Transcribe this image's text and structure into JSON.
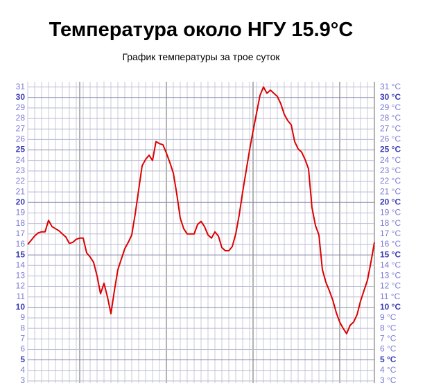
{
  "chart_data": {
    "type": "line",
    "title": "Температура около НГУ 15.9°C",
    "subtitle": "График температуры за трое суток",
    "color": "#dd0000",
    "grid": true,
    "ylim": [
      2.8,
      31.5
    ],
    "yticks": [
      3,
      4,
      5,
      6,
      7,
      8,
      9,
      10,
      11,
      12,
      13,
      14,
      15,
      16,
      17,
      18,
      19,
      20,
      21,
      22,
      23,
      24,
      25,
      26,
      27,
      28,
      29,
      30,
      31
    ],
    "y2lim": [
      2.8,
      31.5
    ],
    "y2ticks": [
      {
        "value": 3,
        "label": "3 °C"
      },
      {
        "value": 4,
        "label": "4 °C"
      },
      {
        "value": 5,
        "label": "5 °C"
      },
      {
        "value": 6,
        "label": "6 °C"
      },
      {
        "value": 7,
        "label": "7 °C"
      },
      {
        "value": 8,
        "label": "8 °C"
      },
      {
        "value": 9,
        "label": "9 °C"
      },
      {
        "value": 10,
        "label": "10 °C"
      },
      {
        "value": 11,
        "label": "11 °C"
      },
      {
        "value": 12,
        "label": "12 °C"
      },
      {
        "value": 13,
        "label": "13 °C"
      },
      {
        "value": 14,
        "label": "14 °C"
      },
      {
        "value": 15,
        "label": "15 °C"
      },
      {
        "value": 16,
        "label": "16 °C"
      },
      {
        "value": 17,
        "label": "17 °C"
      },
      {
        "value": 18,
        "label": "18 °C"
      },
      {
        "value": 19,
        "label": "19 °C"
      },
      {
        "value": 20,
        "label": "20 °C"
      },
      {
        "value": 21,
        "label": "21 °C"
      },
      {
        "value": 22,
        "label": "22 °C"
      },
      {
        "value": 23,
        "label": "23 °C"
      },
      {
        "value": 24,
        "label": "24 °C"
      },
      {
        "value": 25,
        "label": "25 °C"
      },
      {
        "value": 26,
        "label": "26 °C"
      },
      {
        "value": 27,
        "label": "27 °C"
      },
      {
        "value": 28,
        "label": "28 °C"
      },
      {
        "value": 29,
        "label": "29 °C"
      },
      {
        "value": 30,
        "label": "30 °C"
      },
      {
        "value": 31,
        "label": "31 °C"
      }
    ],
    "values": [
      16.0,
      16.4,
      16.8,
      17.1,
      17.2,
      17.2,
      18.3,
      17.7,
      17.5,
      17.3,
      17.0,
      16.7,
      16.1,
      16.2,
      16.5,
      16.6,
      16.6,
      15.2,
      14.8,
      14.3,
      13.0,
      11.3,
      12.3,
      11.0,
      9.4,
      11.6,
      13.6,
      14.6,
      15.6,
      16.2,
      16.9,
      18.9,
      21.2,
      23.5,
      24.1,
      24.5,
      24.0,
      25.8,
      25.6,
      25.5,
      24.7,
      23.8,
      22.8,
      20.8,
      18.5,
      17.5,
      17.0,
      17.0,
      17.0,
      17.9,
      18.2,
      17.7,
      16.9,
      16.6,
      17.2,
      16.8,
      15.7,
      15.4,
      15.4,
      15.8,
      17.0,
      18.8,
      21.0,
      23.0,
      25.0,
      26.8,
      28.5,
      30.2,
      31.0,
      30.4,
      30.7,
      30.4,
      30.1,
      29.4,
      28.4,
      27.8,
      27.4,
      25.8,
      25.1,
      24.8,
      24.1,
      23.2,
      19.5,
      17.8,
      16.9,
      13.6,
      12.4,
      11.6,
      10.7,
      9.5,
      8.6,
      8.0,
      7.5,
      8.3,
      8.6,
      9.3,
      10.6,
      11.6,
      12.6,
      14.3,
      16.2
    ]
  }
}
